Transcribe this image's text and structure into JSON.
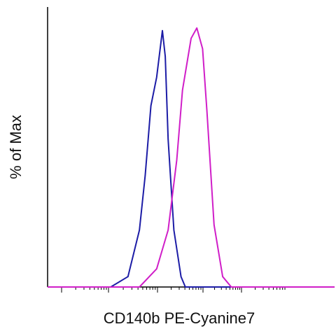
{
  "chart_data": {
    "type": "line",
    "ylabel": "% of Max",
    "xlabel": "CD140b PE-Cyanine7",
    "xlim": [
      0,
      100
    ],
    "ylim": [
      0,
      100
    ],
    "series": [
      {
        "color": "#1c1ca6",
        "x": [
          0,
          22,
          28,
          32,
          34,
          36,
          38,
          40,
          41,
          42,
          44,
          46.5,
          48,
          100
        ],
        "values": [
          0,
          0,
          4,
          22,
          43,
          70,
          81,
          99,
          89,
          57,
          22,
          4,
          0,
          0
        ]
      },
      {
        "color": "#d01ec8",
        "x": [
          0,
          32,
          38,
          42,
          45,
          47,
          50,
          52,
          54,
          55.5,
          58,
          61,
          64,
          100
        ],
        "values": [
          0,
          0,
          7,
          22,
          49,
          76,
          96,
          100,
          92,
          68,
          24,
          4,
          0,
          0
        ]
      }
    ]
  }
}
